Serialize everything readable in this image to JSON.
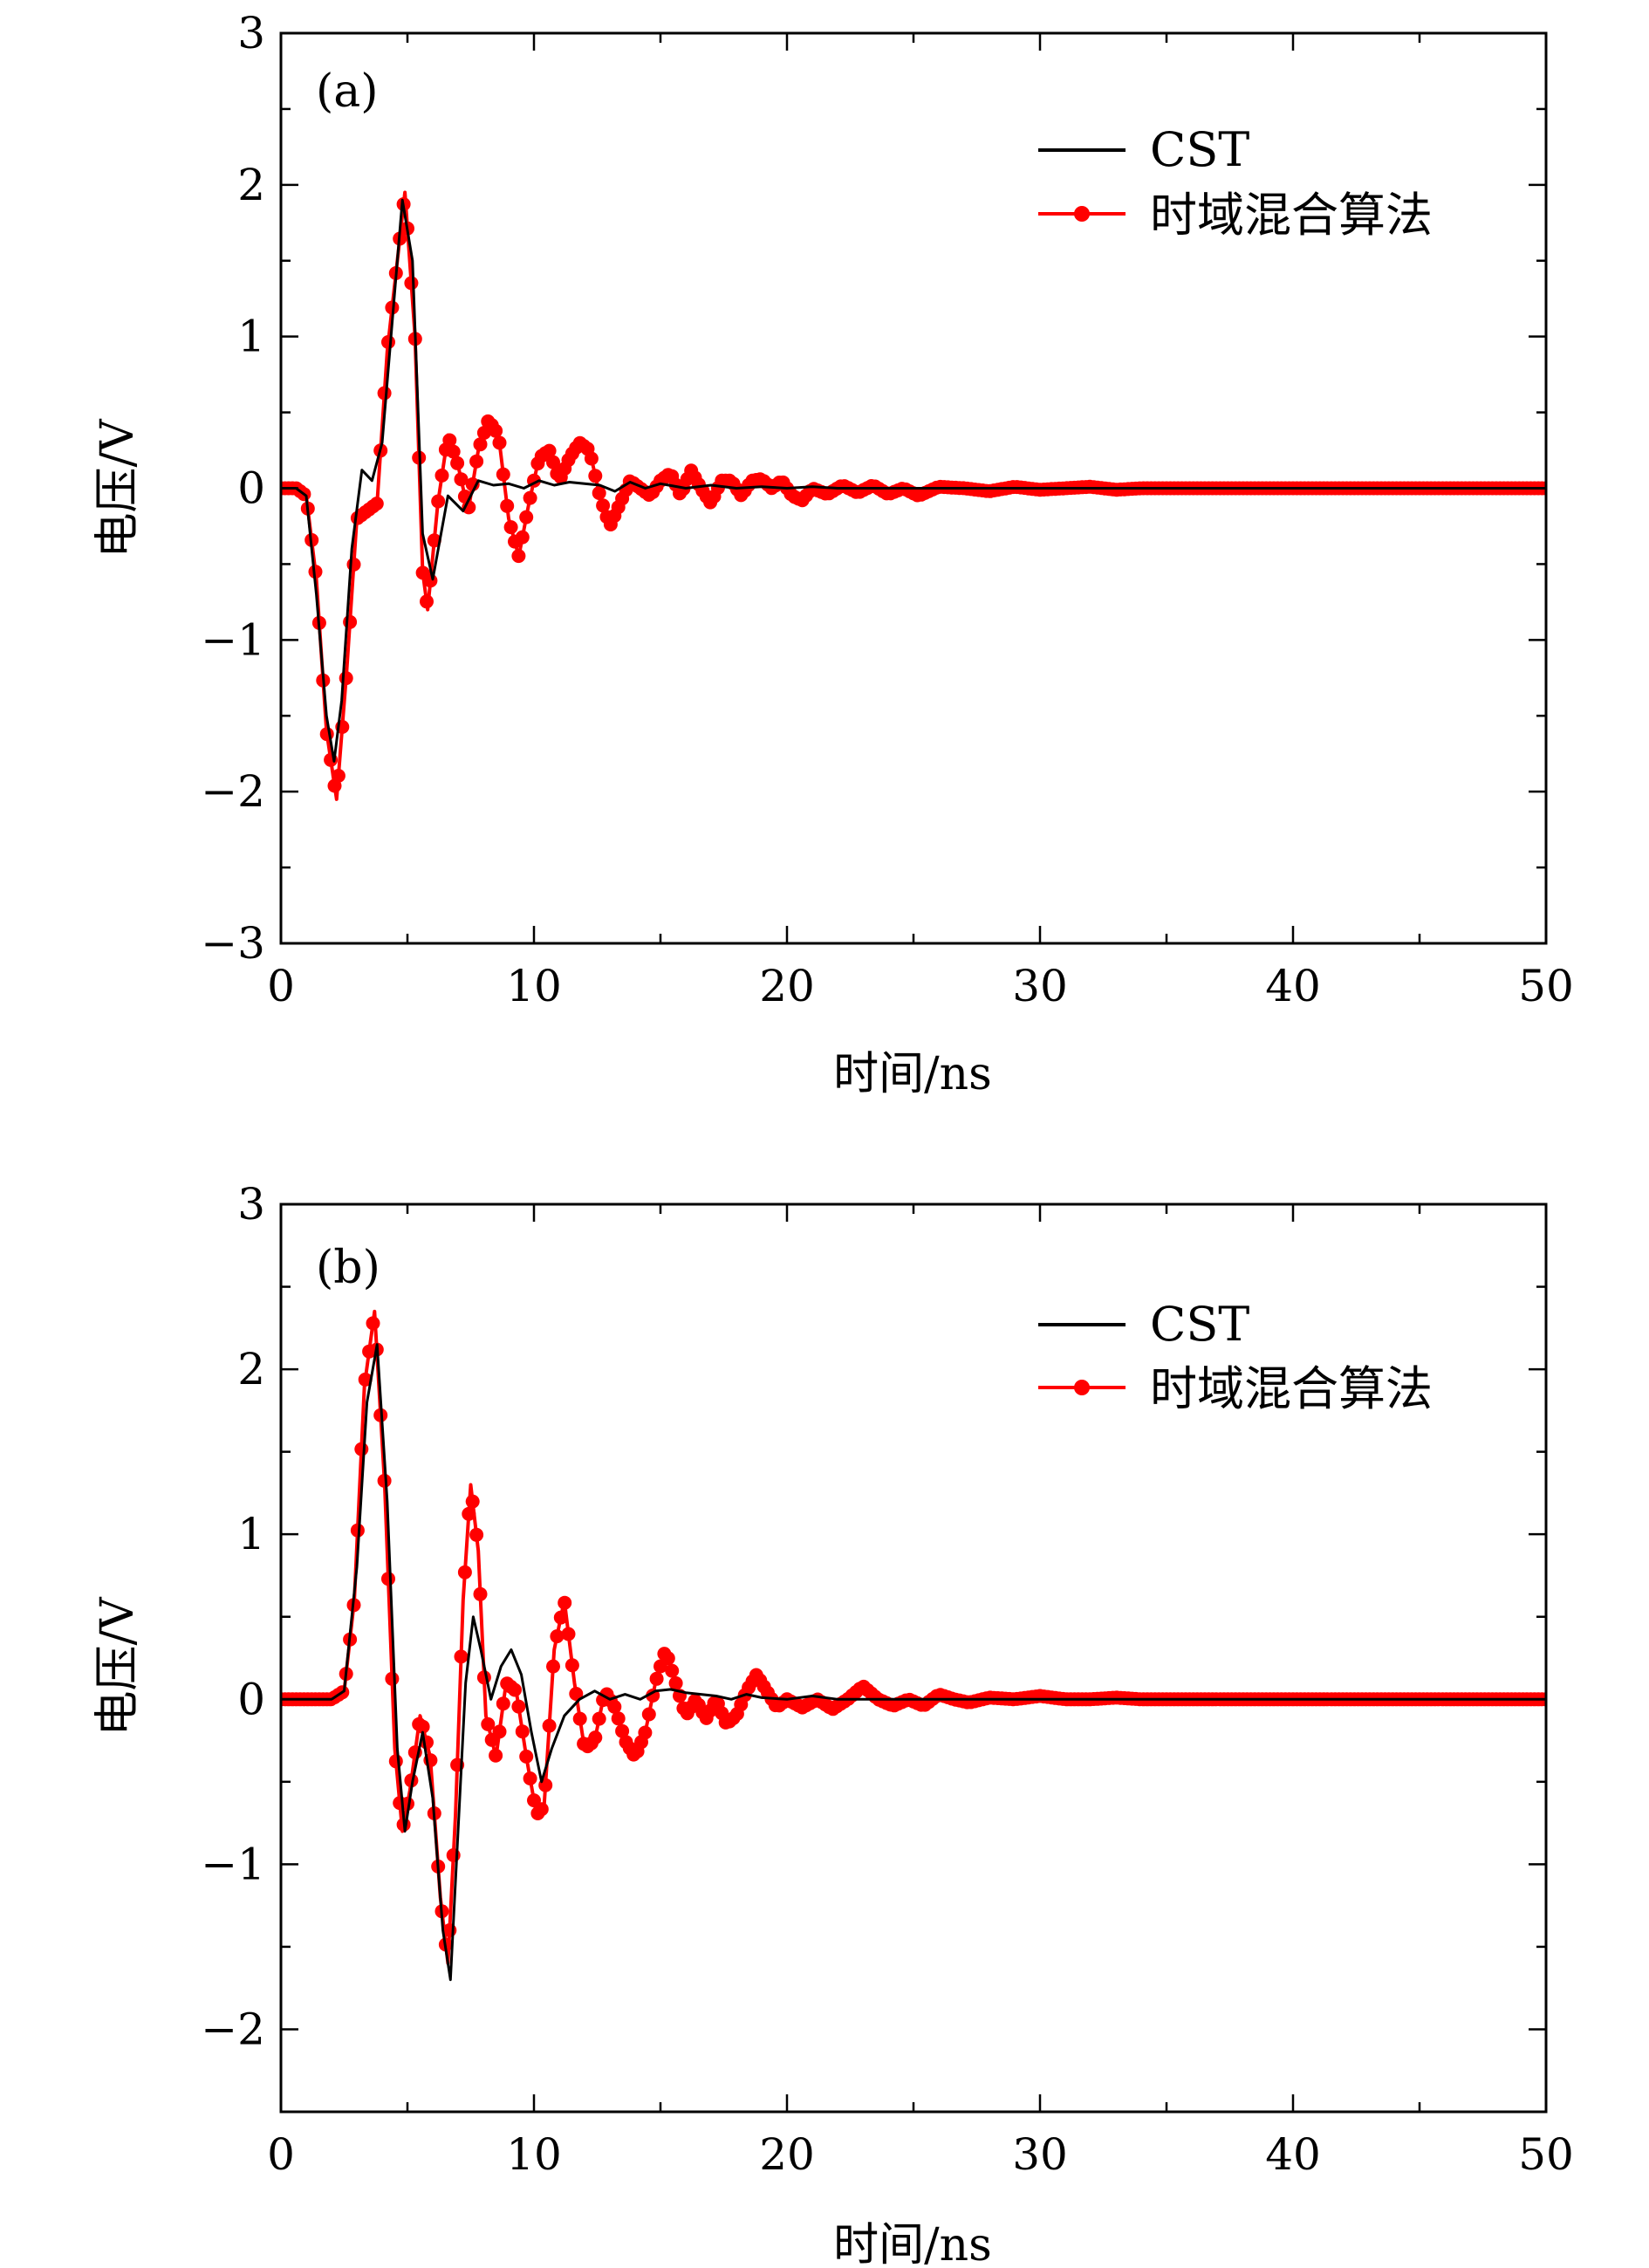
{
  "figure": {
    "colors": {
      "cst": "#000000",
      "hybrid": "#ff0000",
      "axis": "#000000",
      "background": "#ffffff"
    }
  },
  "chart_data": [
    {
      "type": "line",
      "panel_label": "(a)",
      "xlabel": "时间/ns",
      "ylabel": "电压/V",
      "xlim": [
        0,
        50
      ],
      "ylim": [
        -3,
        3
      ],
      "xticks": [
        0,
        10,
        20,
        30,
        40,
        50
      ],
      "yticks": [
        -3,
        -2,
        -1,
        0,
        1,
        2,
        3
      ],
      "yticklabels": [
        "−3",
        "−2",
        "−1",
        "0",
        "1",
        "2",
        "3"
      ],
      "grid": false,
      "legend_position": "top-right",
      "series": [
        {
          "name": "CST",
          "color": "#000000",
          "marker": "none",
          "x": [
            0,
            0.6,
            1.0,
            1.4,
            1.8,
            2.1,
            2.4,
            2.8,
            3.2,
            3.6,
            4.0,
            4.4,
            4.8,
            5.2,
            5.6,
            6.0,
            6.6,
            7.2,
            7.8,
            8.4,
            9.0,
            9.6,
            10.2,
            10.8,
            11.4,
            12.0,
            12.6,
            13.2,
            13.8,
            14.4,
            15.0,
            16.0,
            17.0,
            18.0,
            19.0,
            20.0,
            21.0,
            22.0,
            23.0,
            24.0,
            25.0,
            26.0,
            28.0,
            30.0,
            35.0,
            40.0,
            45.0,
            50.0
          ],
          "y": [
            0,
            0,
            -0.05,
            -0.7,
            -1.5,
            -1.8,
            -1.4,
            -0.4,
            0.12,
            0.05,
            0.3,
            1.1,
            1.9,
            1.5,
            -0.3,
            -0.6,
            -0.05,
            -0.15,
            0.05,
            0.02,
            0.03,
            0.0,
            0.05,
            0.02,
            0.04,
            0.03,
            0.02,
            -0.02,
            0.04,
            0.0,
            0.03,
            0.0,
            0.02,
            0.0,
            0.01,
            0.0,
            0.01,
            0.0,
            0.0,
            0.0,
            0.0,
            0.0,
            0.0,
            0.0,
            0.0,
            0.0,
            0.0,
            0.0
          ]
        },
        {
          "name": "时域混合算法",
          "color": "#ff0000",
          "marker": "circle",
          "x": [
            0,
            0.6,
            1.0,
            1.4,
            1.8,
            2.2,
            2.6,
            3.0,
            3.4,
            3.8,
            4.2,
            4.6,
            4.9,
            5.3,
            5.6,
            5.8,
            6.2,
            6.6,
            7.0,
            7.4,
            7.8,
            8.2,
            8.6,
            9.0,
            9.4,
            9.8,
            10.2,
            10.6,
            11.0,
            11.4,
            11.8,
            12.2,
            12.6,
            13.0,
            13.4,
            13.8,
            14.2,
            14.6,
            15.0,
            15.4,
            15.8,
            16.2,
            16.6,
            17.0,
            17.4,
            17.8,
            18.2,
            18.6,
            19.0,
            19.4,
            19.8,
            20.2,
            20.6,
            21.0,
            21.6,
            22.2,
            22.8,
            23.4,
            24.0,
            24.6,
            25.2,
            26.0,
            27.0,
            28.0,
            29.0,
            30.0,
            31.0,
            32.0,
            33.0,
            34.0,
            35.0,
            40.0,
            45.0,
            50.0
          ],
          "y": [
            0,
            0,
            -0.05,
            -0.6,
            -1.6,
            -2.05,
            -1.2,
            -0.2,
            -0.15,
            -0.1,
            0.9,
            1.5,
            1.95,
            1.0,
            -0.55,
            -0.8,
            -0.1,
            0.35,
            0.15,
            -0.15,
            0.25,
            0.45,
            0.35,
            -0.2,
            -0.45,
            -0.1,
            0.2,
            0.25,
            0.05,
            0.2,
            0.3,
            0.25,
            -0.05,
            -0.25,
            -0.1,
            0.05,
            0.0,
            -0.05,
            0.05,
            0.1,
            -0.05,
            0.12,
            0.0,
            -0.1,
            0.05,
            0.05,
            -0.05,
            0.05,
            0.06,
            0.0,
            0.05,
            -0.05,
            -0.08,
            0.0,
            -0.04,
            0.02,
            -0.03,
            0.02,
            -0.04,
            0.0,
            -0.05,
            0.01,
            0.0,
            -0.02,
            0.01,
            -0.01,
            0.0,
            0.01,
            -0.01,
            0.0,
            0.0,
            0.0,
            0.0,
            0.0
          ]
        }
      ]
    },
    {
      "type": "line",
      "panel_label": "(b)",
      "xlabel": "时间/ns",
      "ylabel": "电压/V",
      "xlim": [
        0,
        50
      ],
      "ylim": [
        -2.5,
        3
      ],
      "xticks": [
        0,
        10,
        20,
        30,
        40,
        50
      ],
      "yticks": [
        -2,
        -1,
        0,
        1,
        2,
        3
      ],
      "yticklabels": [
        "−2",
        "−1",
        "0",
        "1",
        "2",
        "3"
      ],
      "grid": false,
      "legend_position": "top-right",
      "series": [
        {
          "name": "CST",
          "color": "#000000",
          "marker": "none",
          "x": [
            0,
            1.5,
            2.0,
            2.5,
            3.0,
            3.4,
            3.8,
            4.2,
            4.6,
            4.9,
            5.2,
            5.6,
            6.0,
            6.4,
            6.7,
            7.0,
            7.3,
            7.6,
            7.9,
            8.3,
            8.7,
            9.1,
            9.5,
            9.9,
            10.3,
            10.7,
            11.2,
            11.8,
            12.4,
            13.0,
            13.6,
            14.2,
            14.8,
            15.4,
            16.0,
            16.6,
            17.2,
            17.8,
            18.4,
            19.0,
            20.0,
            21.0,
            22.0,
            23.0,
            24.0,
            25.0,
            27.0,
            30.0,
            35.0,
            40.0,
            45.0,
            50.0
          ],
          "y": [
            0,
            0,
            0,
            0.05,
            0.8,
            1.8,
            2.15,
            1.2,
            -0.3,
            -0.8,
            -0.5,
            -0.2,
            -0.6,
            -1.4,
            -1.7,
            -0.8,
            0.1,
            0.5,
            0.3,
            0.0,
            0.2,
            0.3,
            0.15,
            -0.2,
            -0.5,
            -0.3,
            -0.1,
            0.0,
            0.05,
            0.0,
            0.03,
            0.0,
            0.05,
            0.06,
            0.04,
            0.03,
            0.02,
            0.0,
            0.03,
            0.01,
            0.0,
            0.02,
            0.0,
            0.0,
            0.0,
            0.0,
            0.0,
            0.0,
            0.0,
            0.0,
            0.0,
            0.0
          ]
        },
        {
          "name": "时域混合算法",
          "color": "#ff0000",
          "marker": "circle",
          "x": [
            0,
            1.5,
            2.0,
            2.5,
            2.9,
            3.3,
            3.7,
            4.1,
            4.5,
            4.8,
            5.1,
            5.5,
            5.9,
            6.3,
            6.6,
            6.9,
            7.2,
            7.5,
            7.8,
            8.1,
            8.5,
            8.9,
            9.3,
            9.7,
            10.1,
            10.4,
            10.8,
            11.2,
            11.6,
            12.0,
            12.4,
            12.8,
            13.2,
            13.6,
            14.0,
            14.4,
            14.8,
            15.2,
            15.6,
            16.0,
            16.4,
            16.8,
            17.2,
            17.6,
            18.0,
            18.4,
            18.8,
            19.2,
            19.6,
            20.0,
            20.6,
            21.2,
            21.8,
            22.4,
            23.0,
            23.6,
            24.2,
            24.8,
            25.4,
            26.0,
            26.6,
            27.2,
            28.0,
            29.0,
            30.0,
            31.0,
            32.0,
            33.0,
            34.0,
            35.0,
            40.0,
            45.0,
            50.0
          ],
          "y": [
            0,
            0,
            0,
            0.05,
            0.6,
            1.9,
            2.35,
            1.3,
            -0.3,
            -0.8,
            -0.55,
            -0.1,
            -0.35,
            -1.2,
            -1.6,
            -0.7,
            0.6,
            1.3,
            0.9,
            -0.1,
            -0.35,
            0.1,
            0.05,
            -0.35,
            -0.7,
            -0.65,
            0.3,
            0.6,
            0.1,
            -0.3,
            -0.25,
            0.05,
            -0.05,
            -0.25,
            -0.35,
            -0.2,
            0.1,
            0.3,
            0.1,
            -0.1,
            0.0,
            -0.12,
            0.0,
            -0.15,
            -0.1,
            0.05,
            0.15,
            0.05,
            -0.05,
            0.0,
            -0.05,
            0.0,
            -0.06,
            0.0,
            0.08,
            0.0,
            -0.04,
            0.0,
            -0.04,
            0.03,
            0.0,
            -0.02,
            0.01,
            0.0,
            0.02,
            0.0,
            0.0,
            0.01,
            0.0,
            0.0,
            0.0,
            0.0,
            0.0
          ]
        }
      ]
    }
  ]
}
